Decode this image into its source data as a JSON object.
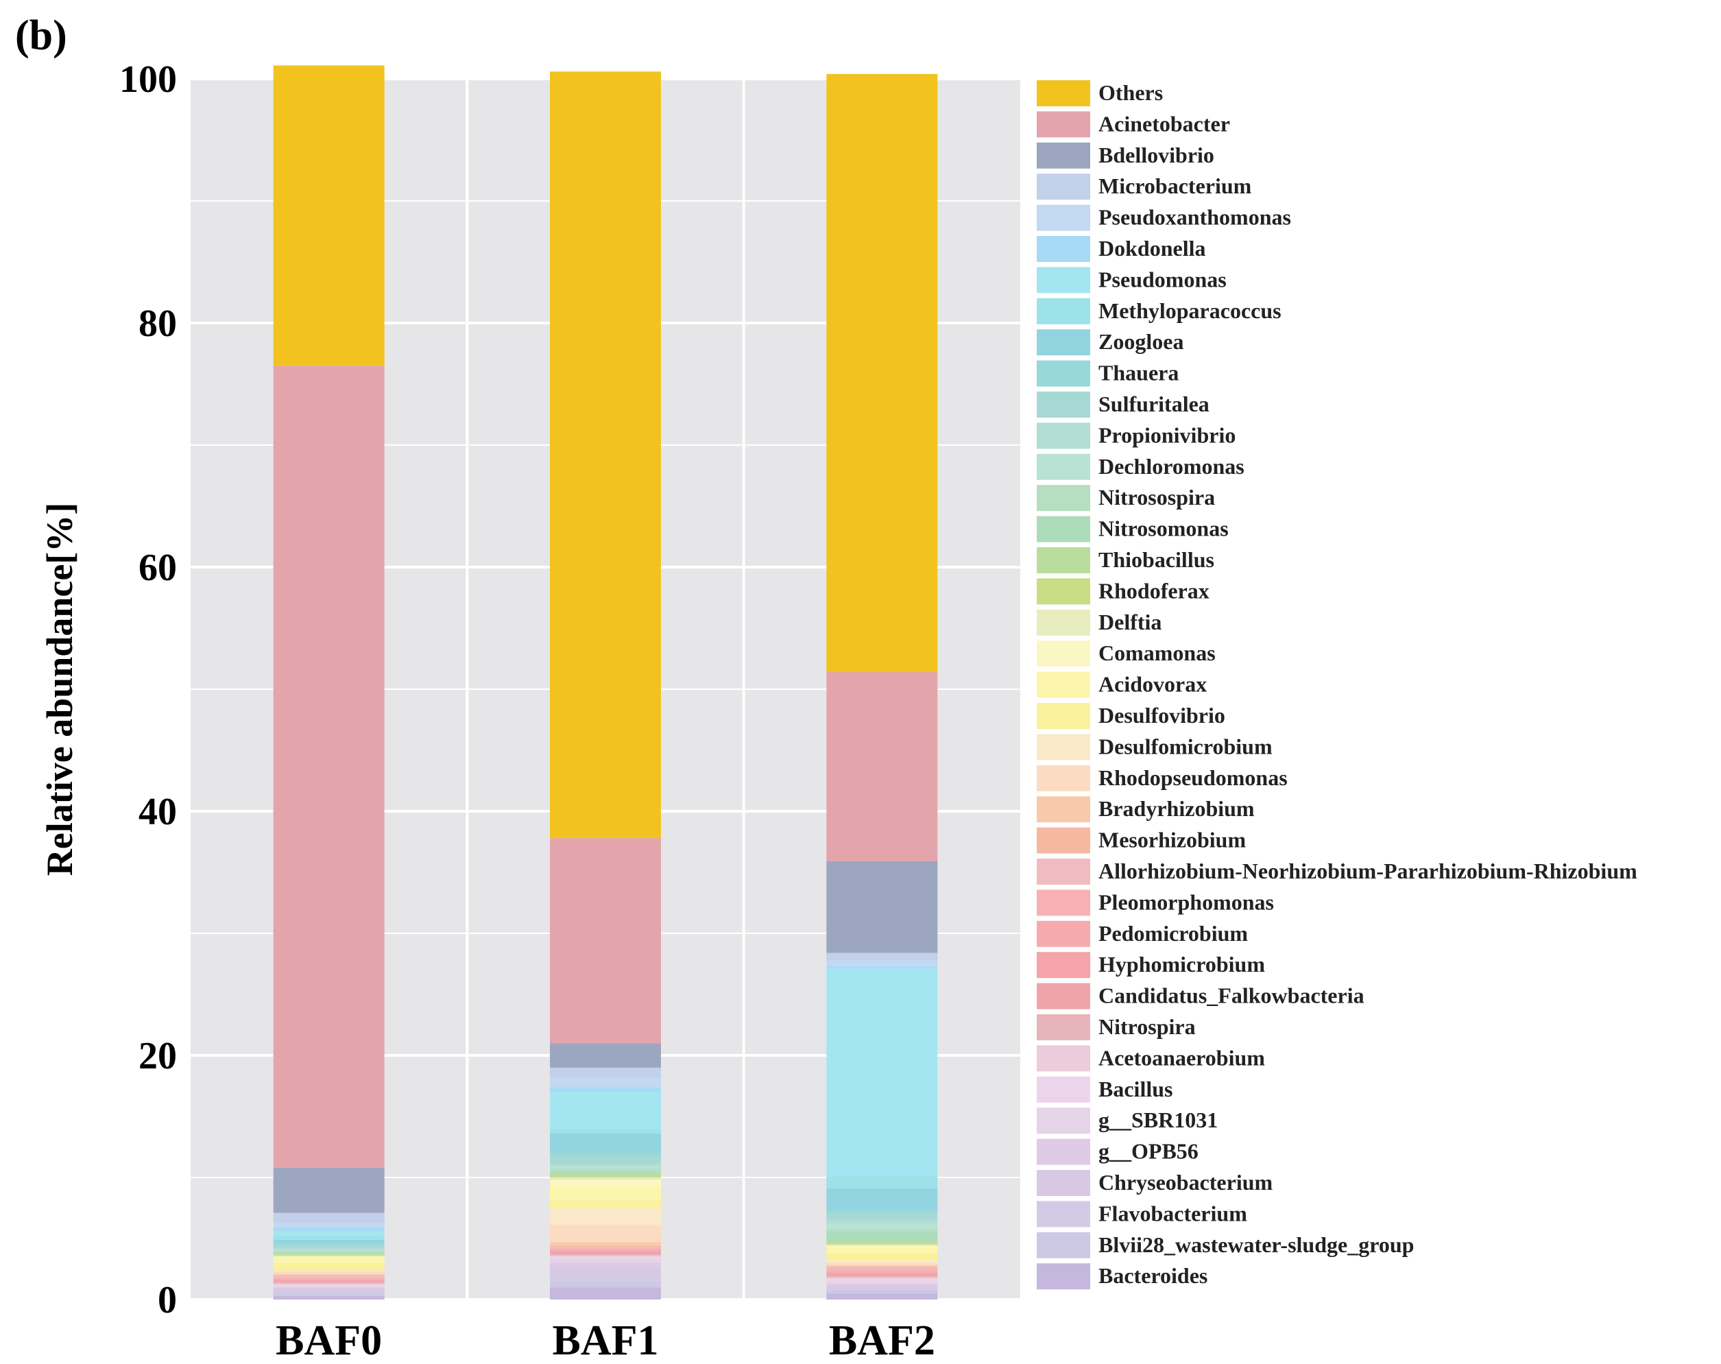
{
  "panel_label": "(b)",
  "chart_data": {
    "type": "bar",
    "stacked": true,
    "ylabel": "Relative abundance[%]",
    "xlabel": "",
    "ylim": [
      0,
      100
    ],
    "yticks": [
      0,
      20,
      40,
      60,
      80,
      100
    ],
    "grid": true,
    "legend_position": "right",
    "categories": [
      "BAF0",
      "BAF1",
      "BAF2"
    ],
    "series": [
      {
        "name": "Bacteroides",
        "color": "#c5b7dd",
        "values": [
          0.3,
          1.0,
          0.5
        ]
      },
      {
        "name": "Blvii28_wastewater-sludge_group",
        "color": "#cdc8e4",
        "values": [
          0.2,
          0.5,
          0.3
        ]
      },
      {
        "name": "Flavobacterium",
        "color": "#d3cbe6",
        "values": [
          0.2,
          0.6,
          0.2
        ]
      },
      {
        "name": "Chryseobacterium",
        "color": "#d8c8e3",
        "values": [
          0.2,
          0.5,
          0.2
        ]
      },
      {
        "name": "g__OPB56",
        "color": "#dfcae6",
        "values": [
          0.1,
          0.4,
          0.1
        ]
      },
      {
        "name": "g__SBR1031",
        "color": "#e5d3e8",
        "values": [
          0.1,
          0.3,
          0.2
        ]
      },
      {
        "name": "Bacillus",
        "color": "#ecd4ea",
        "values": [
          0.1,
          0.2,
          0.2
        ]
      },
      {
        "name": "Acetoanaerobium",
        "color": "#eccbda",
        "values": [
          0.1,
          0.1,
          0.1
        ]
      },
      {
        "name": "Nitrospira",
        "color": "#e8b4bc",
        "values": [
          0.1,
          0.1,
          0.1
        ]
      },
      {
        "name": "Candidatus_Falkowbacteria",
        "color": "#f0a3ab",
        "values": [
          0.1,
          0.2,
          0.2
        ]
      },
      {
        "name": "Hyphomicrobium",
        "color": "#f5a4ab",
        "values": [
          0.1,
          0.1,
          0.1
        ]
      },
      {
        "name": "Pedomicrobium",
        "color": "#f7aaae",
        "values": [
          0.1,
          0.1,
          0.1
        ]
      },
      {
        "name": "Pleomorphomonas",
        "color": "#f7b0b4",
        "values": [
          0.1,
          0.1,
          0.2
        ]
      },
      {
        "name": "Allorhizobium-Neorhizobium-Pararhizobium-Rhizobium",
        "color": "#f0bcbf",
        "values": [
          0.1,
          0.1,
          0.1
        ]
      },
      {
        "name": "Mesorhizobium",
        "color": "#f5b9a2",
        "values": [
          0.1,
          0.1,
          0.1
        ]
      },
      {
        "name": "Bradyrhizobium",
        "color": "#f8c9ab",
        "values": [
          0.1,
          0.3,
          0.1
        ]
      },
      {
        "name": "Rhodopseudomonas",
        "color": "#fbdcc2",
        "values": [
          0.2,
          1.4,
          0.2
        ]
      },
      {
        "name": "Desulfomicrobium",
        "color": "#fbe8c8",
        "values": [
          0.1,
          1.4,
          0.2
        ]
      },
      {
        "name": "Desulfovibrio",
        "color": "#fbf09b",
        "values": [
          0.6,
          0.6,
          0.6
        ]
      },
      {
        "name": "Acidovorax",
        "color": "#fcf6ac",
        "values": [
          0.4,
          1.2,
          0.5
        ]
      },
      {
        "name": "Comamonas",
        "color": "#fbf7c4",
        "values": [
          0.1,
          0.5,
          0.1
        ]
      },
      {
        "name": "Delftia",
        "color": "#e8edbf",
        "values": [
          0.1,
          0.2,
          0.1
        ]
      },
      {
        "name": "Rhodoferax",
        "color": "#c8dd84",
        "values": [
          0.1,
          0.1,
          0.1
        ]
      },
      {
        "name": "Thiobacillus",
        "color": "#b8dd9f",
        "values": [
          0.1,
          0.2,
          0.2
        ]
      },
      {
        "name": "Nitrosomonas",
        "color": "#acdcbb",
        "values": [
          0.1,
          0.2,
          0.8
        ]
      },
      {
        "name": "Nitrosospira",
        "color": "#b6dec1",
        "values": [
          0.1,
          0.2,
          0.2
        ]
      },
      {
        "name": "Dechloromonas",
        "color": "#b7e2d4",
        "values": [
          0.1,
          0.2,
          0.4
        ]
      },
      {
        "name": "Propionivibrio",
        "color": "#b1ddd5",
        "values": [
          0.1,
          0.2,
          0.3
        ]
      },
      {
        "name": "Sulfuritalea",
        "color": "#a6d9d5",
        "values": [
          0.2,
          0.6,
          0.6
        ]
      },
      {
        "name": "Thauera",
        "color": "#98d8d9",
        "values": [
          0.2,
          0.4,
          0.2
        ]
      },
      {
        "name": "Zoogloea",
        "color": "#93d4e1",
        "values": [
          0.3,
          1.5,
          1.8
        ]
      },
      {
        "name": "Methyloparacoccus",
        "color": "#9be3e8",
        "values": [
          0.3,
          0.4,
          1.0
        ]
      },
      {
        "name": "Pseudomonas",
        "color": "#a3e6f1",
        "values": [
          0.4,
          3.0,
          17.0
        ]
      },
      {
        "name": "Dokdonella",
        "color": "#a7daf5",
        "values": [
          0.3,
          0.4,
          0.2
        ]
      },
      {
        "name": "Pseudoxanthomonas",
        "color": "#c3d8f3",
        "values": [
          0.4,
          0.8,
          0.5
        ]
      },
      {
        "name": "Microbacterium",
        "color": "#c2d0ea",
        "values": [
          0.8,
          0.8,
          0.6
        ]
      },
      {
        "name": "Bdellovibrio",
        "color": "#9da6c0",
        "values": [
          3.7,
          2.0,
          7.5
        ]
      },
      {
        "name": "Acinetobacter",
        "color": "#e4a4ab",
        "values": [
          65.7,
          16.8,
          15.5
        ]
      },
      {
        "name": "Others",
        "color": "#f2c31f",
        "values": [
          24.6,
          62.8,
          49.0
        ]
      }
    ],
    "legend_order": [
      "Others",
      "Acinetobacter",
      "Bdellovibrio",
      "Microbacterium",
      "Pseudoxanthomonas",
      "Dokdonella",
      "Pseudomonas",
      "Methyloparacoccus",
      "Zoogloea",
      "Thauera",
      "Sulfuritalea",
      "Propionivibrio",
      "Dechloromonas",
      "Nitrosospira",
      "Nitrosomonas",
      "Thiobacillus",
      "Rhodoferax",
      "Delftia",
      "Comamonas",
      "Acidovorax",
      "Desulfovibrio",
      "Desulfomicrobium",
      "Rhodopseudomonas",
      "Bradyrhizobium",
      "Mesorhizobium",
      "Allorhizobium-Neorhizobium-Pararhizobium-Rhizobium",
      "Pleomorphomonas",
      "Pedomicrobium",
      "Hyphomicrobium",
      "Candidatus_Falkowbacteria",
      "Nitrospira",
      "Acetoanaerobium",
      "Bacillus",
      "g__SBR1031",
      "g__OPB56",
      "Chryseobacterium",
      "Flavobacterium",
      "Blvii28_wastewater-sludge_group",
      "Bacteroides"
    ],
    "style": {
      "plot_background": "#e6e6e8",
      "grid_color": "#ffffff"
    }
  }
}
